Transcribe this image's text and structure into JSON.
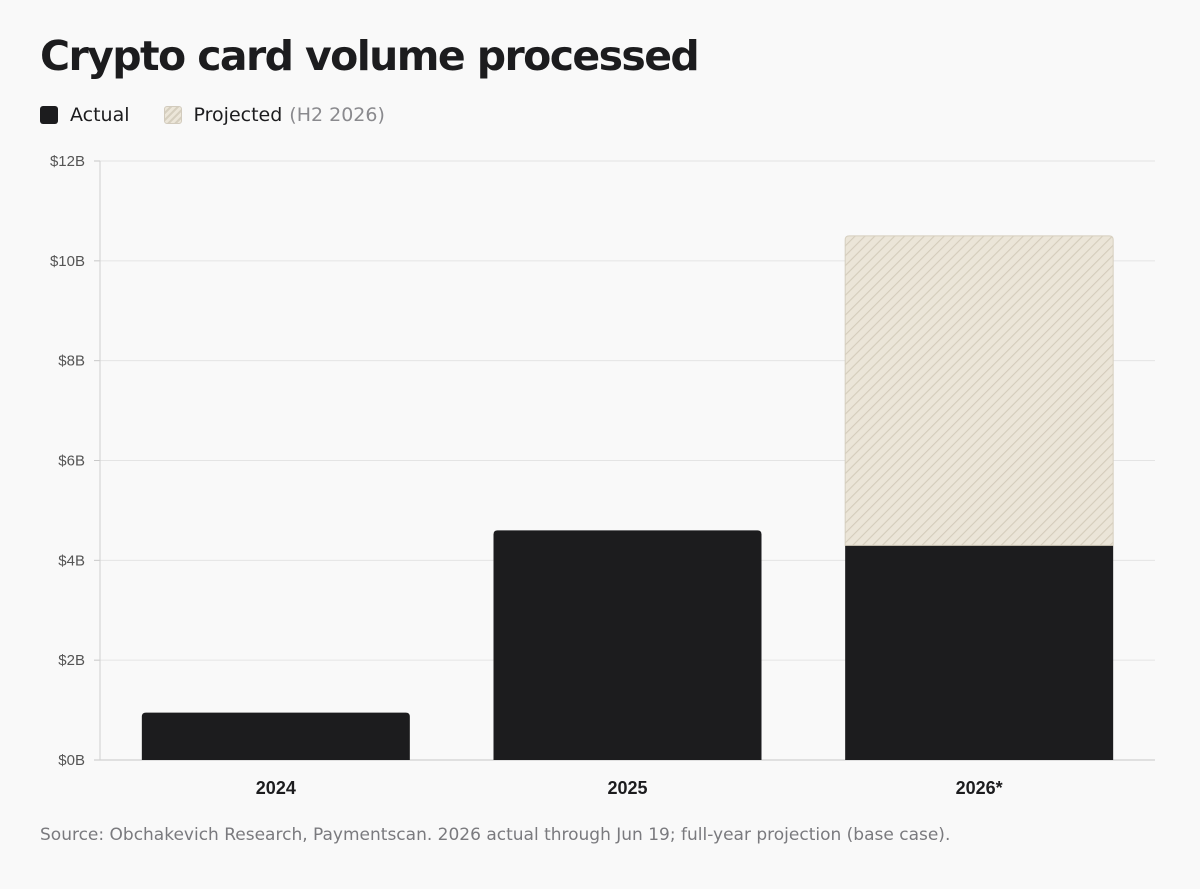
{
  "chart_data": {
    "type": "bar",
    "stacked": true,
    "title": "Crypto card volume processed",
    "categories": [
      "2024",
      "2025",
      "2026*"
    ],
    "series": [
      {
        "name": "Actual",
        "values": [
          0.95,
          4.6,
          4.3
        ],
        "color": "#1c1c1e"
      },
      {
        "name": "Projected",
        "values": [
          0,
          0,
          6.2
        ],
        "color": "#e8e2d4"
      }
    ],
    "legend": {
      "position": "top-left",
      "entries": [
        {
          "label": "Actual",
          "note": ""
        },
        {
          "label": "Projected",
          "note": "(H2 2026)"
        }
      ]
    },
    "yticks": [
      "$0B",
      "$2B",
      "$4B",
      "$6B",
      "$8B",
      "$10B",
      "$12B"
    ],
    "ylim": [
      0,
      12
    ],
    "grid": true,
    "xlabel": "",
    "ylabel": "",
    "source": "Source: Obchakevich Research, Paymentscan. 2026 actual through Jun 19; full-year projection (base case)."
  }
}
